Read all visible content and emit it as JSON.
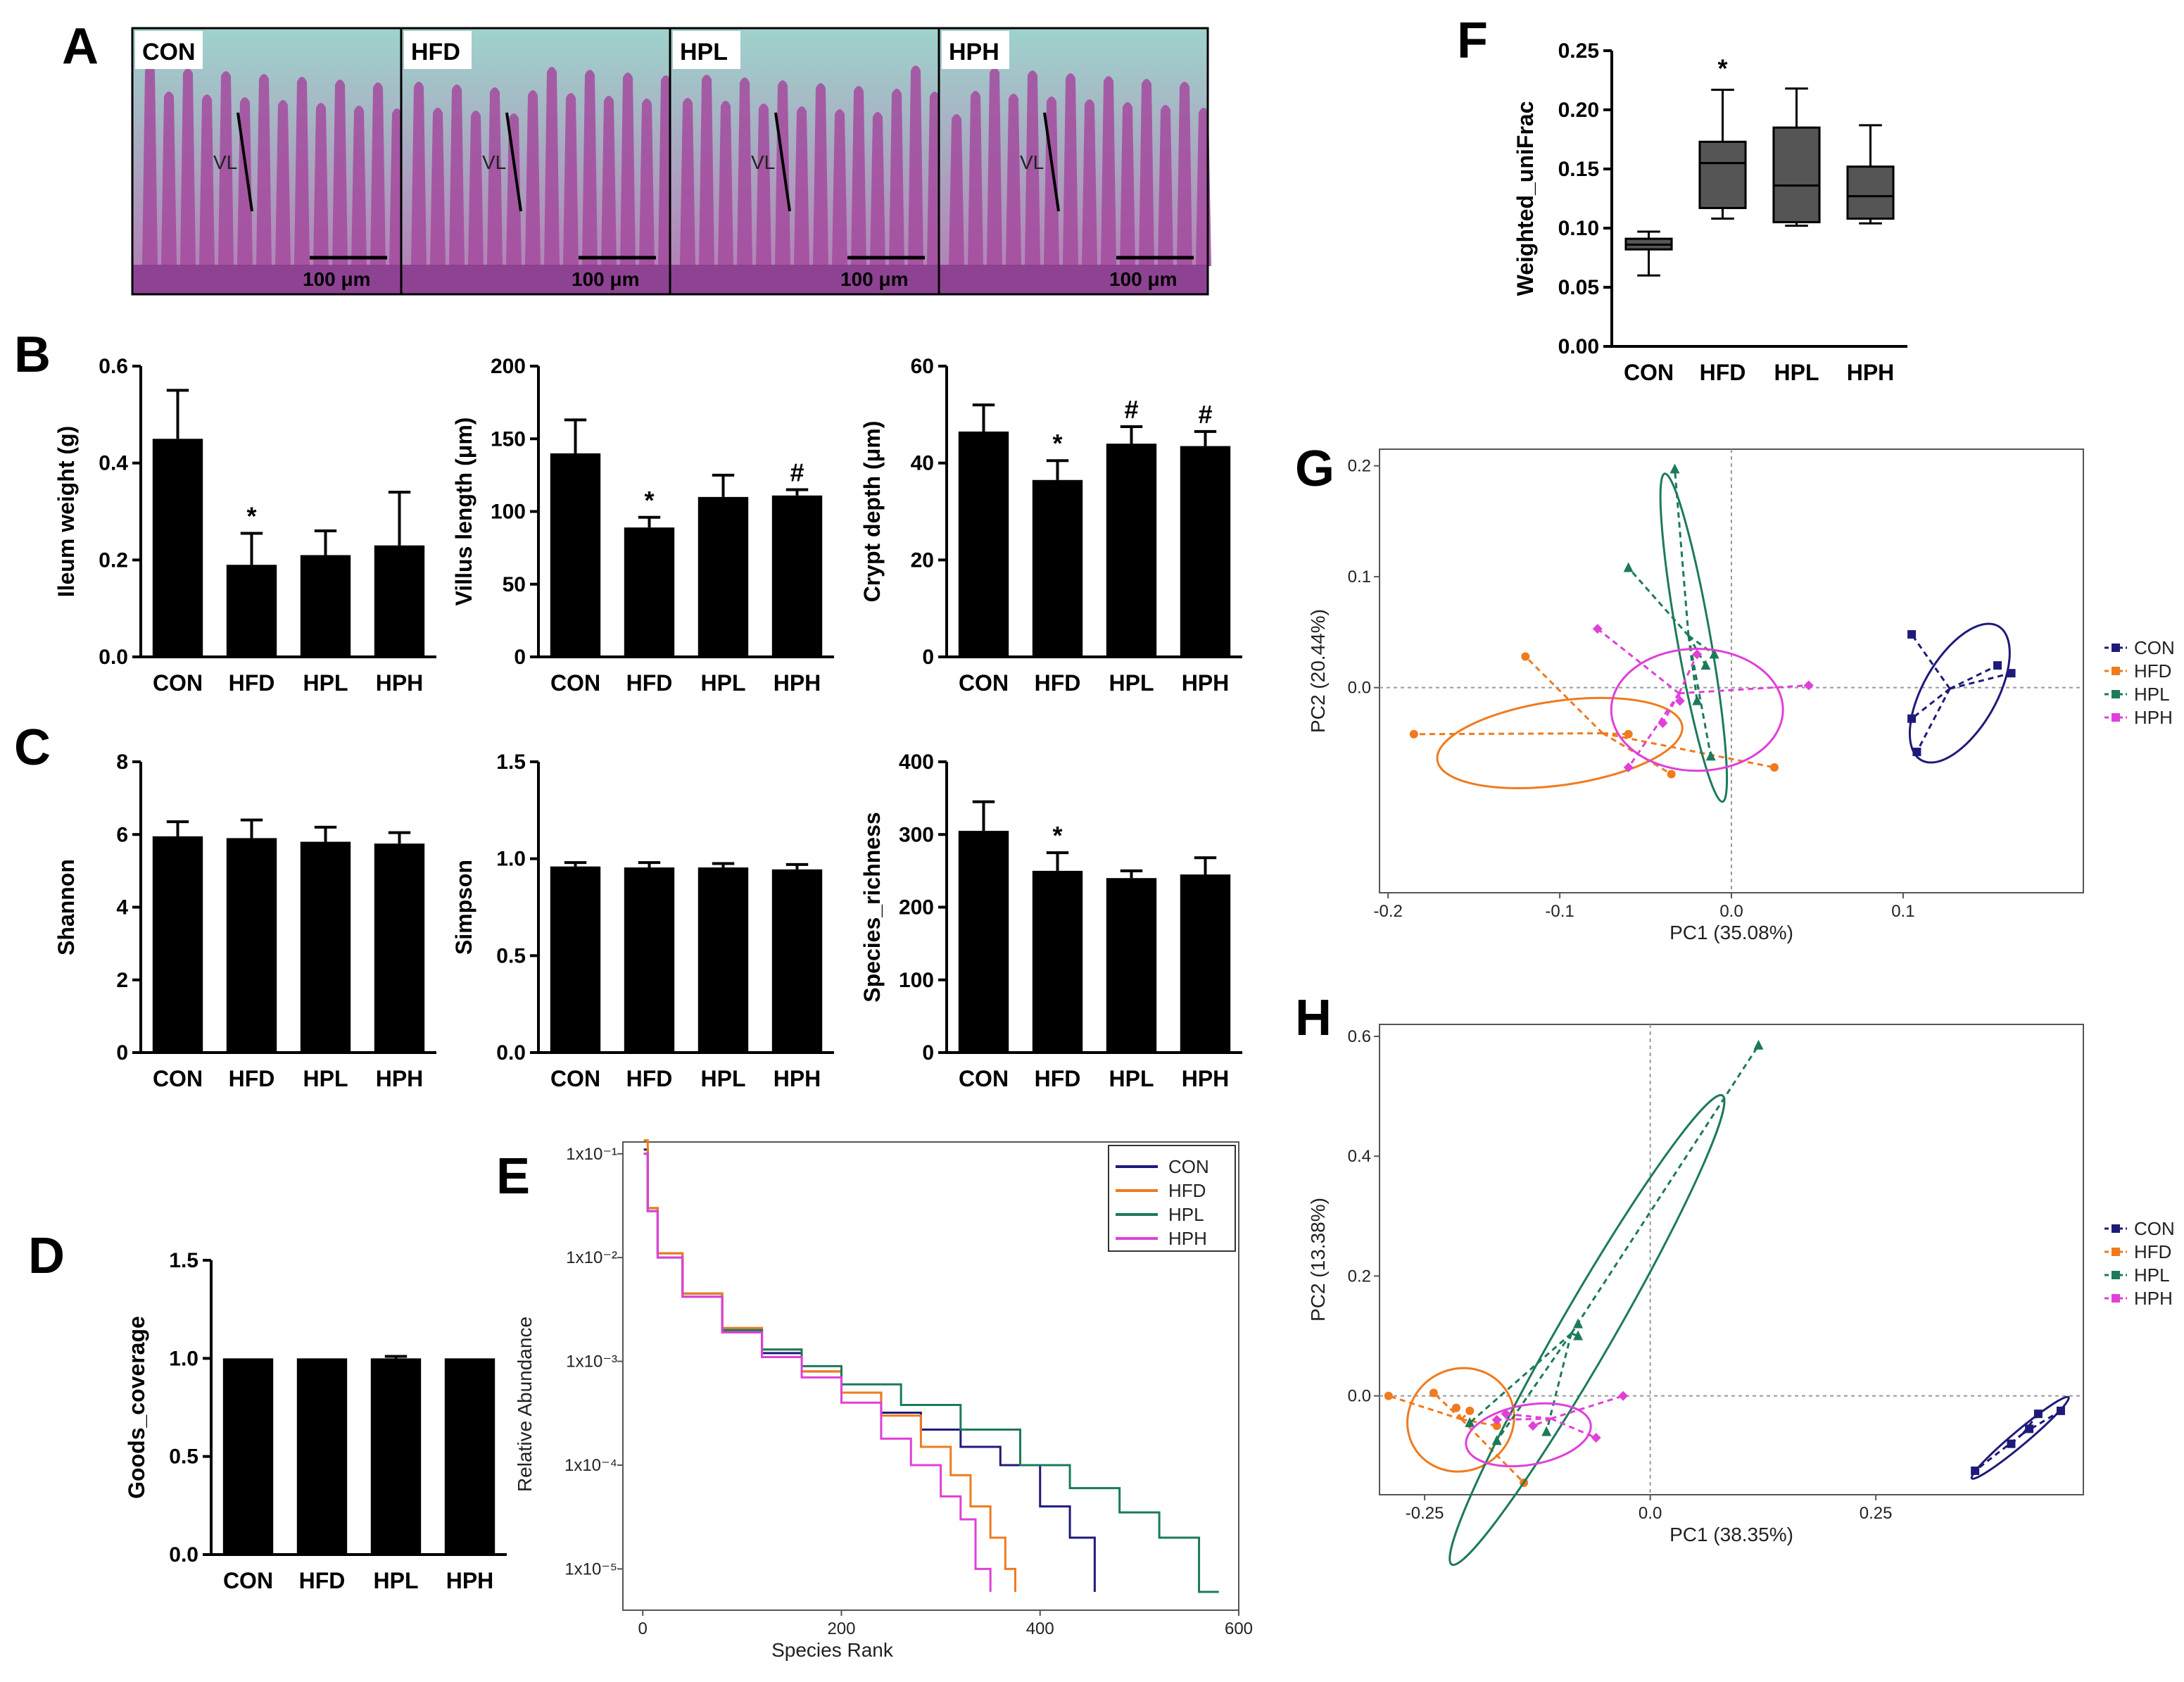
{
  "panel_labels": [
    "A",
    "B",
    "C",
    "D",
    "E",
    "F",
    "G",
    "H"
  ],
  "groups": [
    "CON",
    "HFD",
    "HPL",
    "HPH"
  ],
  "colors": {
    "CON": "#1f1a7a",
    "HFD": "#f07a1e",
    "HPL": "#1c7a5a",
    "HPH": "#e040d8",
    "bar": "#000000",
    "box": "#555555"
  },
  "histology": {
    "panels": [
      {
        "label": "CON",
        "scale": "100 μm",
        "annotation": "VL"
      },
      {
        "label": "HFD",
        "scale": "100 μm",
        "annotation": "VL"
      },
      {
        "label": "HPL",
        "scale": "100 μm",
        "annotation": "VL"
      },
      {
        "label": "HPH",
        "scale": "100 μm",
        "annotation": "VL"
      }
    ]
  },
  "chart_data": [
    {
      "id": "B1",
      "type": "bar",
      "categories": [
        "CON",
        "HFD",
        "HPL",
        "HPH"
      ],
      "values": [
        0.45,
        0.19,
        0.21,
        0.23
      ],
      "errors": [
        0.1,
        0.065,
        0.05,
        0.11
      ],
      "ylabel": "Ileum weight (g)",
      "ylim": [
        0,
        0.6
      ],
      "ticks": [
        "0.0",
        "0.2",
        "0.4",
        "0.6"
      ],
      "tick_values": [
        0,
        0.2,
        0.4,
        0.6
      ],
      "sig": [
        "",
        "*",
        "",
        ""
      ]
    },
    {
      "id": "B2",
      "type": "bar",
      "categories": [
        "CON",
        "HFD",
        "HPL",
        "HPH"
      ],
      "values": [
        140,
        89,
        110,
        111
      ],
      "errors": [
        23,
        7,
        15,
        4
      ],
      "ylabel": "Villus length (μm)",
      "ylim": [
        0,
        200
      ],
      "ticks": [
        "0",
        "50",
        "100",
        "150",
        "200"
      ],
      "tick_values": [
        0,
        50,
        100,
        150,
        200
      ],
      "sig": [
        "",
        "*",
        "",
        "#"
      ]
    },
    {
      "id": "B3",
      "type": "bar",
      "categories": [
        "CON",
        "HFD",
        "HPL",
        "HPH"
      ],
      "values": [
        46.5,
        36.5,
        44,
        43.5
      ],
      "errors": [
        5.5,
        4,
        3.5,
        3
      ],
      "ylabel": "Crypt depth (μm)",
      "ylim": [
        0,
        60
      ],
      "ticks": [
        "0",
        "20",
        "40",
        "60"
      ],
      "tick_values": [
        0,
        20,
        40,
        60
      ],
      "sig": [
        "",
        "*",
        "#",
        "#"
      ]
    },
    {
      "id": "C1",
      "type": "bar",
      "categories": [
        "CON",
        "HFD",
        "HPL",
        "HPH"
      ],
      "values": [
        5.95,
        5.9,
        5.8,
        5.75
      ],
      "errors": [
        0.4,
        0.5,
        0.4,
        0.3
      ],
      "ylabel": "Shannon",
      "ylim": [
        0,
        8
      ],
      "ticks": [
        "0",
        "2",
        "4",
        "6",
        "8"
      ],
      "tick_values": [
        0,
        2,
        4,
        6,
        8
      ],
      "sig": [
        "",
        "",
        "",
        ""
      ]
    },
    {
      "id": "C2",
      "type": "bar",
      "categories": [
        "CON",
        "HFD",
        "HPL",
        "HPH"
      ],
      "values": [
        0.96,
        0.955,
        0.955,
        0.945
      ],
      "errors": [
        0.02,
        0.025,
        0.02,
        0.025
      ],
      "ylabel": "Simpson",
      "ylim": [
        0,
        1.5
      ],
      "ticks": [
        "0.0",
        "0.5",
        "1.0",
        "1.5"
      ],
      "tick_values": [
        0,
        0.5,
        1.0,
        1.5
      ],
      "sig": [
        "",
        "",
        "",
        ""
      ]
    },
    {
      "id": "C3",
      "type": "bar",
      "categories": [
        "CON",
        "HFD",
        "HPL",
        "HPH"
      ],
      "values": [
        305,
        250,
        240,
        245
      ],
      "errors": [
        40,
        25,
        10,
        23
      ],
      "ylabel": "Species_richness",
      "ylim": [
        0,
        400
      ],
      "ticks": [
        "0",
        "100",
        "200",
        "300",
        "400"
      ],
      "tick_values": [
        0,
        100,
        200,
        300,
        400
      ],
      "sig": [
        "",
        "*",
        "",
        ""
      ]
    },
    {
      "id": "D",
      "type": "bar",
      "categories": [
        "CON",
        "HFD",
        "HPL",
        "HPH"
      ],
      "values": [
        1.0,
        1.0,
        1.0,
        1.0
      ],
      "errors": [
        0,
        0,
        0.01,
        0
      ],
      "ylabel": "Goods_coverage",
      "ylim": [
        0,
        1.5
      ],
      "ticks": [
        "0.0",
        "0.5",
        "1.0",
        "1.5"
      ],
      "tick_values": [
        0,
        0.5,
        1.0,
        1.5
      ],
      "sig": [
        "",
        "",
        "",
        ""
      ]
    },
    {
      "id": "E",
      "type": "line",
      "xlabel": "Species Rank",
      "ylabel": "Relative Abundance",
      "log_y": true,
      "xlim": [
        -20,
        600
      ],
      "ylim": [
        4e-06,
        0.13
      ],
      "xticks": [
        "0",
        "200",
        "400",
        "600"
      ],
      "xtick_values": [
        0,
        200,
        400,
        600
      ],
      "yticks": [
        "1x10⁻¹",
        "1x10⁻²",
        "1x10⁻³",
        "1x10⁻⁴",
        "1x10⁻⁵"
      ],
      "ytick_values": [
        0.1,
        0.01,
        0.001,
        0.0001,
        1e-05
      ],
      "legend_position": "top-right",
      "series": [
        {
          "name": "CON",
          "x": [
            1,
            5,
            15,
            40,
            80,
            120,
            160,
            200,
            240,
            280,
            320,
            360,
            400,
            430,
            455
          ],
          "y": [
            0.11,
            0.03,
            0.011,
            0.0045,
            0.002,
            0.0012,
            0.0008,
            0.0005,
            0.00032,
            0.00022,
            0.00015,
            0.0001,
            4e-05,
            2e-05,
            6e-06
          ]
        },
        {
          "name": "HFD",
          "x": [
            1,
            5,
            15,
            40,
            80,
            120,
            160,
            200,
            240,
            280,
            310,
            330,
            350,
            365,
            375
          ],
          "y": [
            0.135,
            0.03,
            0.011,
            0.0045,
            0.0021,
            0.0013,
            0.0008,
            0.0005,
            0.0003,
            0.00015,
            8e-05,
            4e-05,
            2e-05,
            1e-05,
            6e-06
          ]
        },
        {
          "name": "HPL",
          "x": [
            1,
            5,
            15,
            40,
            80,
            120,
            160,
            200,
            260,
            320,
            380,
            430,
            480,
            520,
            560,
            580
          ],
          "y": [
            0.1,
            0.028,
            0.01,
            0.0042,
            0.002,
            0.0013,
            0.0009,
            0.0006,
            0.00038,
            0.00022,
            0.0001,
            6e-05,
            3.5e-05,
            2e-05,
            6e-06,
            6e-06
          ]
        },
        {
          "name": "HPH",
          "x": [
            1,
            5,
            15,
            40,
            80,
            120,
            160,
            200,
            240,
            270,
            300,
            320,
            335,
            350
          ],
          "y": [
            0.1,
            0.028,
            0.01,
            0.0042,
            0.0019,
            0.0011,
            0.0007,
            0.0004,
            0.00018,
            0.0001,
            5e-05,
            3e-05,
            1e-05,
            6e-06
          ]
        }
      ]
    },
    {
      "id": "F",
      "type": "box",
      "categories": [
        "CON",
        "HFD",
        "HPL",
        "HPH"
      ],
      "ylabel": "Weighted_uniFrac",
      "ylim": [
        0,
        0.25
      ],
      "ticks": [
        "0.00",
        "0.05",
        "0.10",
        "0.15",
        "0.20",
        "0.25"
      ],
      "tick_values": [
        0,
        0.05,
        0.1,
        0.15,
        0.2,
        0.25
      ],
      "sig": [
        "",
        "*",
        "",
        ""
      ],
      "boxes": [
        {
          "min": 0.06,
          "q1": 0.082,
          "median": 0.086,
          "q3": 0.091,
          "max": 0.097
        },
        {
          "min": 0.108,
          "q1": 0.117,
          "median": 0.155,
          "q3": 0.173,
          "max": 0.217
        },
        {
          "min": 0.102,
          "q1": 0.105,
          "median": 0.136,
          "q3": 0.185,
          "max": 0.218
        },
        {
          "min": 0.104,
          "q1": 0.108,
          "median": 0.127,
          "q3": 0.152,
          "max": 0.187
        }
      ]
    },
    {
      "id": "G",
      "type": "scatter",
      "xlabel": "PC1 (35.08%)",
      "ylabel": "PC2 (20.44%)",
      "xlim": [
        -0.205,
        0.205
      ],
      "ylim": [
        -0.185,
        0.215
      ],
      "xticks": [
        "-0.2",
        "-0.1",
        "0.0",
        "0.1"
      ],
      "xtick_values": [
        -0.2,
        -0.1,
        0.0,
        0.1
      ],
      "yticks": [
        "0.0",
        "0.1",
        "0.2"
      ],
      "ytick_values": [
        0.0,
        0.1,
        0.2
      ],
      "legend_position": "right",
      "series": [
        {
          "name": "CON",
          "points": [
            [
              0.105,
              0.048
            ],
            [
              0.155,
              0.02
            ],
            [
              0.163,
              0.013
            ],
            [
              0.105,
              -0.028
            ],
            [
              0.108,
              -0.058
            ]
          ],
          "ellipse": {
            "cx": 0.133,
            "cy": -0.005,
            "rx": 0.045,
            "ry": 0.033,
            "rot": -60
          }
        },
        {
          "name": "HFD",
          "points": [
            [
              -0.12,
              0.028
            ],
            [
              -0.185,
              -0.042
            ],
            [
              -0.06,
              -0.042
            ],
            [
              -0.035,
              -0.078
            ],
            [
              0.025,
              -0.072
            ]
          ],
          "ellipse": {
            "cx": -0.1,
            "cy": -0.05,
            "rx": 0.072,
            "ry": 0.038,
            "rot": -8
          }
        },
        {
          "name": "HPL",
          "points": [
            [
              -0.033,
              0.197
            ],
            [
              -0.06,
              0.108
            ],
            [
              -0.01,
              0.03
            ],
            [
              -0.015,
              0.02
            ],
            [
              -0.02,
              -0.012
            ],
            [
              -0.012,
              -0.062
            ]
          ],
          "ellipse": {
            "cx": -0.022,
            "cy": 0.045,
            "rx": 0.097,
            "ry": 0.015,
            "rot": 80
          }
        },
        {
          "name": "HPH",
          "points": [
            [
              -0.078,
              0.053
            ],
            [
              0.045,
              0.002
            ],
            [
              -0.03,
              -0.012
            ],
            [
              -0.04,
              -0.032
            ],
            [
              -0.06,
              -0.072
            ],
            [
              -0.02,
              0.03
            ]
          ],
          "ellipse": {
            "cx": -0.02,
            "cy": -0.02,
            "rx": 0.05,
            "ry": 0.055,
            "rot": 0
          }
        }
      ]
    },
    {
      "id": "H",
      "type": "scatter",
      "xlabel": "PC1 (38.35%)",
      "ylabel": "PC2 (13.38%)",
      "xlim": [
        -0.3,
        0.48
      ],
      "ylim": [
        -0.165,
        0.62
      ],
      "xticks": [
        "-0.25",
        "0.0",
        "0.25"
      ],
      "xtick_values": [
        -0.25,
        0.0,
        0.25
      ],
      "yticks": [
        "0.0",
        "0.2",
        "0.4",
        "0.6"
      ],
      "ytick_values": [
        0.0,
        0.2,
        0.4,
        0.6
      ],
      "legend_position": "right",
      "series": [
        {
          "name": "CON",
          "points": [
            [
              0.36,
              -0.125
            ],
            [
              0.42,
              -0.055
            ],
            [
              0.43,
              -0.03
            ],
            [
              0.455,
              -0.025
            ],
            [
              0.4,
              -0.08
            ]
          ],
          "ellipse": {
            "cx": 0.41,
            "cy": -0.07,
            "rx": 0.07,
            "ry": 0.012,
            "rot": -40
          }
        },
        {
          "name": "HFD",
          "points": [
            [
              -0.29,
              0.0
            ],
            [
              -0.24,
              0.005
            ],
            [
              -0.2,
              -0.025
            ],
            [
              -0.17,
              -0.05
            ],
            [
              -0.14,
              -0.145
            ],
            [
              -0.215,
              -0.02
            ]
          ],
          "ellipse": {
            "cx": -0.21,
            "cy": -0.04,
            "rx": 0.06,
            "ry": 0.085,
            "rot": -30
          }
        },
        {
          "name": "HPL",
          "points": [
            [
              0.12,
              0.585
            ],
            [
              -0.08,
              0.12
            ],
            [
              -0.08,
              0.1
            ],
            [
              -0.115,
              -0.06
            ],
            [
              -0.17,
              -0.075
            ],
            [
              -0.2,
              -0.045
            ]
          ],
          "ellipse": {
            "cx": -0.07,
            "cy": 0.11,
            "rx": 0.3,
            "ry": 0.045,
            "rot": -60
          }
        },
        {
          "name": "HPH",
          "points": [
            [
              -0.03,
              0.0
            ],
            [
              -0.16,
              -0.03
            ],
            [
              -0.06,
              -0.07
            ],
            [
              -0.13,
              -0.05
            ],
            [
              -0.17,
              -0.04
            ]
          ],
          "ellipse": {
            "cx": -0.135,
            "cy": -0.065,
            "rx": 0.07,
            "ry": 0.05,
            "rot": -10
          }
        }
      ]
    }
  ]
}
